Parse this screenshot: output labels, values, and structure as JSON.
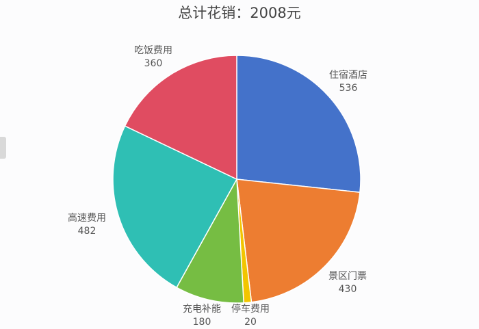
{
  "chart_data": {
    "type": "pie",
    "title": "总计花销：2008元",
    "total": 2008,
    "start_angle_deg": 90,
    "direction": "clockwise",
    "slices": [
      {
        "name": "住宿酒店",
        "value": 536,
        "color": "#4472ca"
      },
      {
        "name": "景区门票",
        "value": 430,
        "color": "#ed7d31"
      },
      {
        "name": "停车费用",
        "value": 20,
        "color": "#f2c500"
      },
      {
        "name": "充电补能",
        "value": 180,
        "color": "#76bd43"
      },
      {
        "name": "高速费用",
        "value": 482,
        "color": "#2fbfb4"
      },
      {
        "name": "吃饭费用",
        "value": 360,
        "color": "#e04c61"
      }
    ]
  }
}
